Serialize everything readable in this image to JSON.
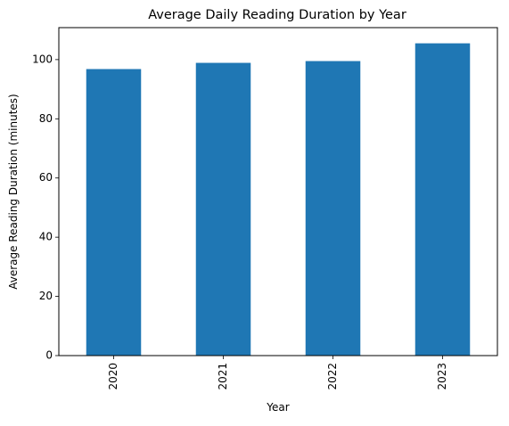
{
  "chart_data": {
    "type": "bar",
    "title": "Average Daily Reading Duration by Year",
    "xlabel": "Year",
    "ylabel": "Average Reading Duration (minutes)",
    "categories": [
      "2020",
      "2021",
      "2022",
      "2023"
    ],
    "values": [
      96.8,
      98.9,
      99.5,
      105.5
    ],
    "ylim": [
      0,
      110.8
    ],
    "yticks": [
      0,
      20,
      40,
      60,
      80,
      100
    ],
    "bar_color": "#1f77b4",
    "grid": false,
    "legend": false,
    "xtick_rotation": "vertical"
  }
}
